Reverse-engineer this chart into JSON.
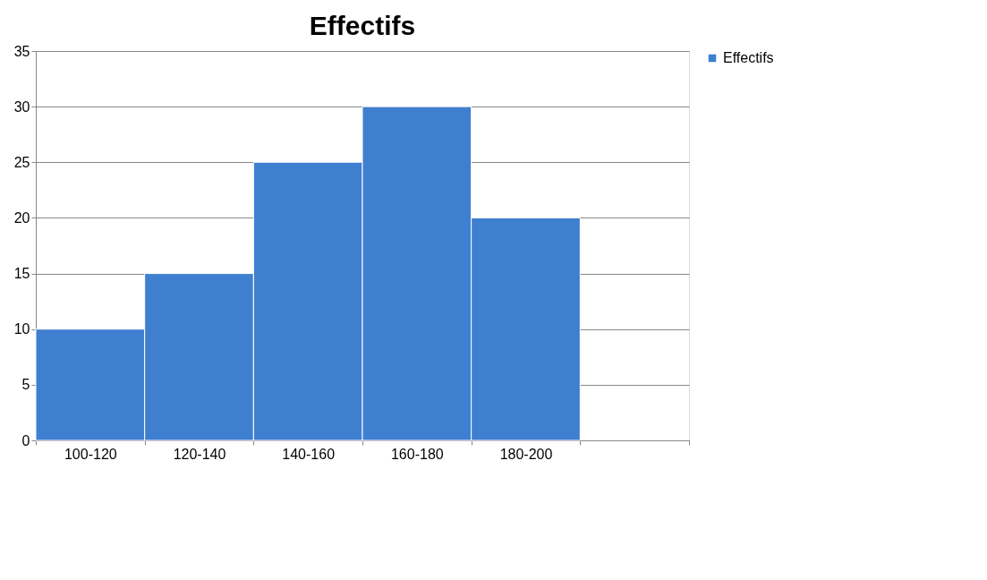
{
  "chart_data": {
    "type": "bar",
    "title": "Effectifs",
    "categories": [
      "100-120",
      "120-140",
      "140-160",
      "160-180",
      "180-200",
      null
    ],
    "series": [
      {
        "name": "Effectifs",
        "color": "#3f7fd0",
        "values": [
          10,
          15,
          25,
          30,
          20,
          null
        ]
      }
    ],
    "ylim": [
      0,
      35
    ],
    "yticks": [
      0,
      5,
      10,
      15,
      20,
      25,
      30,
      35
    ],
    "grid": "y",
    "legend": "right"
  }
}
